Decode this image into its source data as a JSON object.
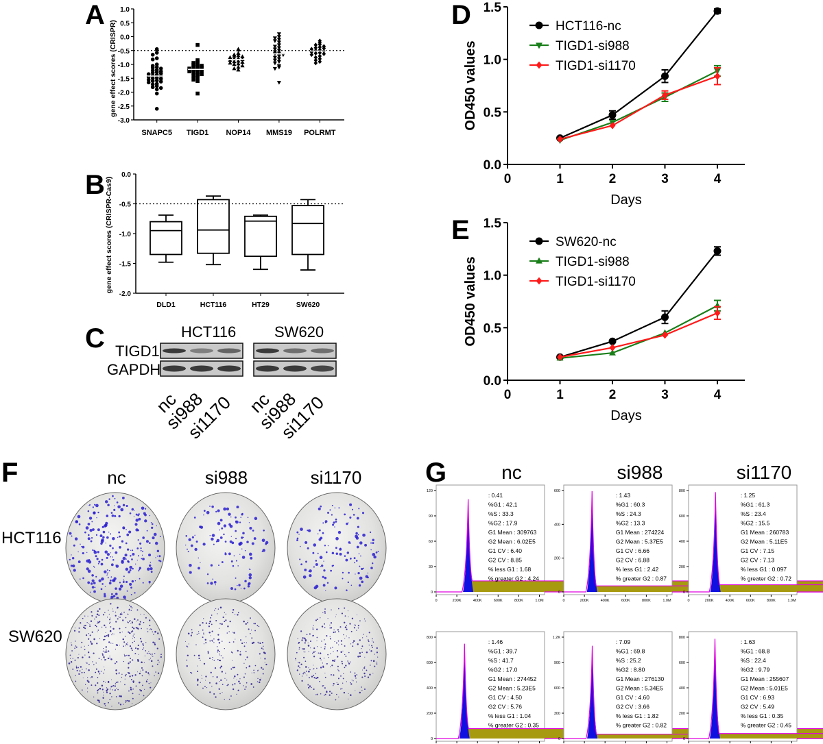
{
  "figure": {
    "panel_labels": [
      "A",
      "B",
      "C",
      "D",
      "E",
      "F",
      "G"
    ]
  },
  "chart_data": [
    {
      "id": "A",
      "type": "scatter",
      "title": "",
      "xlabel": "",
      "ylabel": "gene effect scores (CRISPR)",
      "categories": [
        "SNAPC5",
        "TIGD1",
        "NOP14",
        "MMS19",
        "POLRMT"
      ],
      "ylim": [
        -3.0,
        1.0
      ],
      "yticks": [
        "1.0",
        "0.5",
        "0.0",
        "-0.5",
        "-1.0",
        "-1.5",
        "-2.0",
        "-2.5",
        "-3.0"
      ],
      "reference_line": -0.5,
      "markers": [
        "circle",
        "square",
        "triangle-up",
        "triangle-down",
        "diamond"
      ],
      "series": [
        {
          "name": "SNAPC5",
          "mean": -1.42,
          "values": [
            -0.45,
            -0.58,
            -0.65,
            -0.78,
            -0.82,
            -1.0,
            -1.05,
            -1.1,
            -1.12,
            -1.15,
            -1.2,
            -1.22,
            -1.25,
            -1.28,
            -1.3,
            -1.32,
            -1.35,
            -1.38,
            -1.4,
            -1.42,
            -1.45,
            -1.48,
            -1.5,
            -1.52,
            -1.55,
            -1.58,
            -1.6,
            -1.62,
            -1.65,
            -1.7,
            -1.72,
            -1.78,
            -1.82,
            -1.85,
            -1.9,
            -2.05,
            -2.6
          ]
        },
        {
          "name": "TIGD1",
          "mean": -1.18,
          "values": [
            -0.3,
            -0.85,
            -0.9,
            -0.95,
            -1.0,
            -1.02,
            -1.05,
            -1.08,
            -1.1,
            -1.12,
            -1.15,
            -1.18,
            -1.2,
            -1.22,
            -1.25,
            -1.28,
            -1.3,
            -1.35,
            -1.38,
            -1.42,
            -1.48,
            -1.55,
            -1.6,
            -2.05
          ]
        },
        {
          "name": "NOP14",
          "mean": -0.82,
          "values": [
            -0.45,
            -0.48,
            -0.6,
            -0.65,
            -0.68,
            -0.7,
            -0.72,
            -0.75,
            -0.78,
            -0.8,
            -0.82,
            -0.85,
            -0.88,
            -0.9,
            -0.92,
            -0.95,
            -0.98,
            -1.0,
            -1.05,
            -1.1,
            -1.15,
            -1.2
          ]
        },
        {
          "name": "MMS19",
          "mean": -0.62,
          "values": [
            0.1,
            0.0,
            -0.05,
            -0.1,
            -0.15,
            -0.2,
            -0.3,
            -0.35,
            -0.4,
            -0.45,
            -0.5,
            -0.55,
            -0.6,
            -0.62,
            -0.65,
            -0.7,
            -0.75,
            -0.8,
            -0.85,
            -0.9,
            -0.95,
            -1.05,
            -1.1,
            -1.15,
            -1.65
          ]
        },
        {
          "name": "POLRMT",
          "mean": -0.52,
          "values": [
            -0.15,
            -0.22,
            -0.28,
            -0.3,
            -0.35,
            -0.38,
            -0.4,
            -0.42,
            -0.45,
            -0.48,
            -0.5,
            -0.52,
            -0.55,
            -0.58,
            -0.6,
            -0.62,
            -0.65,
            -0.7,
            -0.75,
            -0.8,
            -0.85,
            -0.9,
            -0.95
          ]
        }
      ]
    },
    {
      "id": "B",
      "type": "box",
      "title": "",
      "xlabel": "",
      "ylabel": "gene effect scores (CRISPR-Cas9)",
      "categories": [
        "DLD1",
        "HCT116",
        "HT29",
        "SW620"
      ],
      "ylim": [
        -2.0,
        0.0
      ],
      "yticks": [
        "0.0",
        "-0.5",
        "-1.0",
        "-1.5",
        "-2.0"
      ],
      "reference_line": -0.5,
      "boxes": [
        {
          "name": "DLD1",
          "min": -1.48,
          "q1": -1.35,
          "median": -0.95,
          "q3": -0.8,
          "max": -0.69
        },
        {
          "name": "HCT116",
          "min": -1.52,
          "q1": -1.33,
          "median": -0.94,
          "q3": -0.43,
          "max": -0.37
        },
        {
          "name": "HT29",
          "min": -1.6,
          "q1": -1.38,
          "median": -0.79,
          "q3": -0.71,
          "max": -0.69
        },
        {
          "name": "SW620",
          "min": -1.61,
          "q1": -1.35,
          "median": -0.83,
          "q3": -0.53,
          "max": -0.43
        }
      ]
    },
    {
      "id": "D",
      "type": "line",
      "title": "",
      "xlabel": "Days",
      "ylabel": "OD450 values",
      "x": [
        1,
        2,
        3,
        4
      ],
      "xticks": [
        "0",
        "1",
        "2",
        "3",
        "4"
      ],
      "xlim": [
        0,
        4.5
      ],
      "ylim": [
        0.0,
        1.5
      ],
      "yticks": [
        "0.0",
        "0.5",
        "1.0",
        "1.5"
      ],
      "legend_position": "top-left",
      "series": [
        {
          "name": "HCT116-nc",
          "color": "#000000",
          "marker": "circle",
          "values": [
            0.25,
            0.47,
            0.84,
            1.46
          ],
          "errors": [
            0.01,
            0.04,
            0.06,
            0.02
          ]
        },
        {
          "name": "TIGD1-si988",
          "color": "#1a7f1a",
          "marker": "triangle-down",
          "values": [
            0.23,
            0.4,
            0.64,
            0.89
          ],
          "errors": [
            0.01,
            0.01,
            0.04,
            0.05
          ]
        },
        {
          "name": "TIGD1-si1170",
          "color": "#ff1a1a",
          "marker": "diamond",
          "values": [
            0.24,
            0.37,
            0.66,
            0.84
          ],
          "errors": [
            0.01,
            0.01,
            0.04,
            0.08
          ]
        }
      ]
    },
    {
      "id": "E",
      "type": "line",
      "title": "",
      "xlabel": "Days",
      "ylabel": "OD450 values",
      "x": [
        1,
        2,
        3,
        4
      ],
      "xticks": [
        "0",
        "1",
        "2",
        "3",
        "4"
      ],
      "xlim": [
        0,
        4.5
      ],
      "ylim": [
        0.0,
        1.5
      ],
      "yticks": [
        "0.0",
        "0.5",
        "1.0",
        "1.5"
      ],
      "legend_position": "top-left",
      "series": [
        {
          "name": "SW620-nc",
          "color": "#000000",
          "marker": "circle",
          "values": [
            0.22,
            0.37,
            0.6,
            1.23
          ],
          "errors": [
            0.01,
            0.01,
            0.06,
            0.04
          ]
        },
        {
          "name": "TIGD1-si988",
          "color": "#1a7f1a",
          "marker": "triangle-up",
          "values": [
            0.21,
            0.26,
            0.45,
            0.71
          ],
          "errors": [
            0.01,
            0.01,
            0.01,
            0.05
          ]
        },
        {
          "name": "TIGD1-si1170",
          "color": "#ff1a1a",
          "marker": "diamond",
          "values": [
            0.22,
            0.31,
            0.43,
            0.64
          ],
          "errors": [
            0.01,
            0.01,
            0.01,
            0.06
          ]
        }
      ]
    },
    {
      "id": "G",
      "type": "histogram",
      "xlabel": "",
      "xticks": [
        "0",
        "200K",
        "400K",
        "600K",
        "800K",
        "1.0M"
      ],
      "columns": [
        "nc",
        "si988",
        "si1170"
      ],
      "rows": [
        "HCT116",
        "SW620"
      ],
      "panels": [
        {
          "row": "HCT116",
          "col": "nc",
          "yticks": [
            "0",
            "30",
            "60",
            "90",
            "120"
          ],
          "g1_peak_rel": 0.9,
          "g2_peak_rel": 0.2,
          "stats": [
            ": 0.41",
            "%G1  : 42.1",
            "%S  : 33.3",
            "%G2  : 17.9",
            "G1 Mean  : 309763",
            "G2 Mean  : 6.02E5",
            "G1 CV : 6.40",
            "G2 CV : 8.85",
            "% less G1   : 1.68",
            "% greater G2    : 4.24"
          ]
        },
        {
          "row": "HCT116",
          "col": "si988",
          "yticks": [
            "0",
            "200",
            "400",
            "600"
          ],
          "g1_peak_rel": 0.98,
          "g2_peak_rel": 0.11,
          "stats": [
            ": 1.43",
            "%G1  : 60.3",
            "%S  : 24.3",
            "%G2  : 13.3",
            "G1 Mean  : 274224",
            "G2 Mean  : 5.37E5",
            "G1 CV : 6.66",
            "G2 CV : 6.88",
            "% less G1   : 2.42",
            "% greater G2    : 0.87"
          ]
        },
        {
          "row": "HCT116",
          "col": "si1170",
          "yticks": [
            "0",
            "200",
            "400",
            "600",
            "800"
          ],
          "g1_peak_rel": 0.97,
          "g2_peak_rel": 0.13,
          "stats": [
            ": 1.25",
            "%G1  : 61.3",
            "%S  : 23.4",
            "%G2  : 15.5",
            "G1 Mean  : 260783",
            "G2 Mean  : 5.11E5",
            "G1 CV : 7.15",
            "G2 CV : 7.13",
            "% less G1   : 0.097",
            "% greater G2    : 0.72"
          ]
        },
        {
          "row": "SW620",
          "col": "nc",
          "yticks": [
            "0",
            "200",
            "400",
            "600",
            "800"
          ],
          "g1_peak_rel": 0.92,
          "g2_peak_rel": 0.18,
          "stats": [
            ": 1.46",
            "%G1  : 39.7",
            "%S  : 41.7",
            "%G2  : 17.0",
            "G1 Mean  : 274452",
            "G2 Mean  : 5.23E5",
            "G1 CV : 4.50",
            "G2 CV : 5.76",
            "% less G1   : 1.04",
            "% greater G2    : 0.35"
          ]
        },
        {
          "row": "SW620",
          "col": "si988",
          "yticks": [
            "0",
            "300",
            "600",
            "900",
            "1.2K"
          ],
          "g1_peak_rel": 0.9,
          "g2_peak_rel": 0.08,
          "stats": [
            ": 7.09",
            "%G1  : 69.8",
            "%S  : 25.2",
            "%G2  : 8.80",
            "G1 Mean  : 276130",
            "G2 Mean  : 5.34E5",
            "G1 CV : 4.60",
            "G2 CV : 3.66",
            "% less G1   : 1.82",
            "% greater G2    : 0.82"
          ]
        },
        {
          "row": "SW620",
          "col": "si1170",
          "yticks": [
            "0",
            "200",
            "400",
            "600",
            "800"
          ],
          "g1_peak_rel": 0.97,
          "g2_peak_rel": 0.09,
          "stats": [
            ": 1.63",
            "%G1  : 68.8",
            "%S  : 22.4",
            "%G2  : 9.79",
            "G1 Mean  : 255607",
            "G2 Mean  : 5.01E5",
            "G1 CV : 6.93",
            "G2 CV : 5.49",
            "% less G1   : 0.35",
            "% greater G2    : 0.45"
          ]
        }
      ]
    }
  ],
  "western_blot": {
    "groups": [
      "HCT116",
      "SW620"
    ],
    "rows": [
      "TIGD1",
      "GAPDH"
    ],
    "lanes": [
      "nc",
      "si988",
      "si1170"
    ],
    "tigd1_intensity": [
      [
        1.0,
        0.35,
        0.6
      ],
      [
        1.0,
        0.5,
        0.5
      ]
    ],
    "gapdh_intensity": [
      [
        1.0,
        1.0,
        1.0
      ],
      [
        1.0,
        1.0,
        0.9
      ]
    ]
  },
  "colony_assay": {
    "columns": [
      "nc",
      "si988",
      "si1170"
    ],
    "rows": [
      "HCT116",
      "SW620"
    ],
    "colony_color": "#2a1fd0",
    "relative_density": [
      [
        1.0,
        0.45,
        0.5
      ],
      [
        1.0,
        0.55,
        0.7
      ]
    ]
  }
}
